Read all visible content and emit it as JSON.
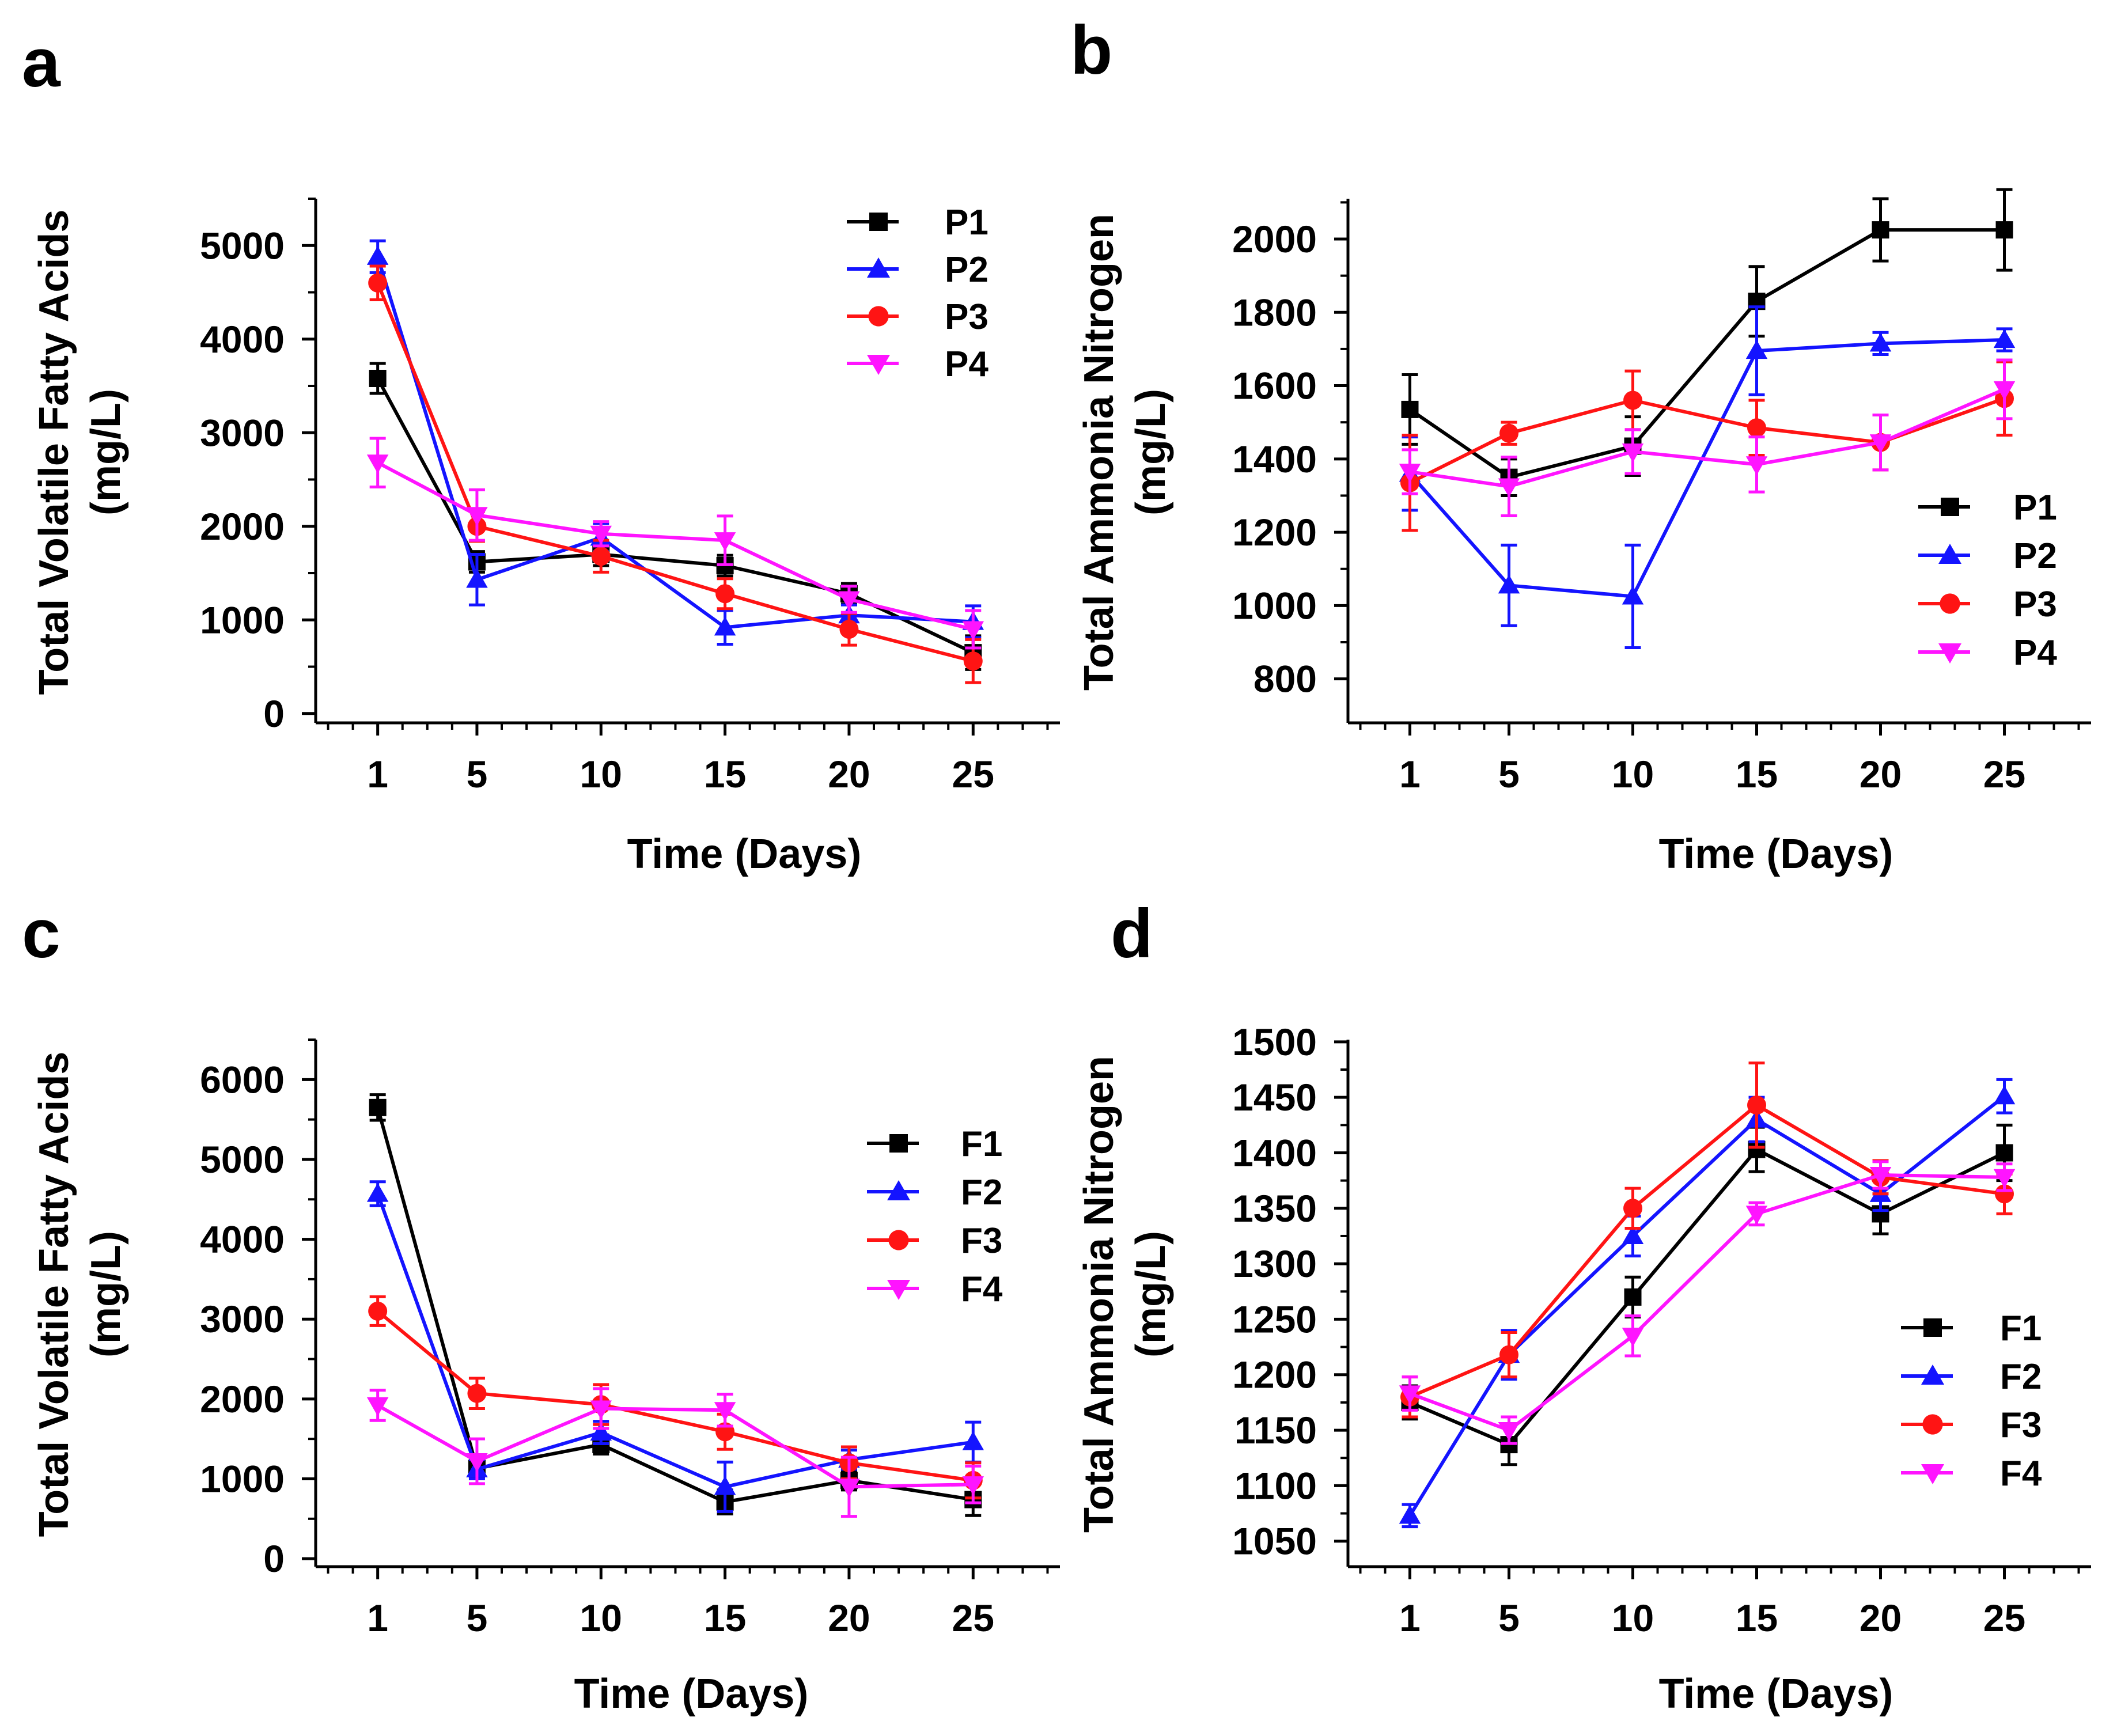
{
  "figure": {
    "panels": [
      {
        "letter": "a",
        "ylabel_line1": "Total Volatile Fatty Acids",
        "ylabel_line2": "(mg/L)",
        "xlabel": "Time (Days)"
      },
      {
        "letter": "b",
        "ylabel_line1": "Total Ammonia Nitrogen",
        "ylabel_line2": "(mg/L)",
        "xlabel": "Time (Days)"
      },
      {
        "letter": "c",
        "ylabel_line1": "Total Volatile Fatty Acids",
        "ylabel_line2": "(mg/L)",
        "xlabel": "Time (Days)"
      },
      {
        "letter": "d",
        "ylabel_line1": "Total Ammonia Nitrogen",
        "ylabel_line2": "(mg/L)",
        "xlabel": "Time (Days)"
      }
    ]
  },
  "colors": {
    "black": "#000000",
    "blue": "#1414ff",
    "red": "#ff1414",
    "magenta": "#ff14ff"
  },
  "chart_data": [
    {
      "panel": "a",
      "type": "line",
      "xlabel": "Time (Days)",
      "ylabel": "Total Volatile Fatty Acids (mg/L)",
      "x": [
        1,
        5,
        10,
        15,
        20,
        25
      ],
      "x_ticks": [
        1,
        5,
        10,
        15,
        20,
        25
      ],
      "y_ticks": [
        0,
        1000,
        2000,
        3000,
        4000,
        5000
      ],
      "ylim": [
        -100,
        5500
      ],
      "legend_position": "top-right",
      "series": [
        {
          "name": "P1",
          "marker": "square",
          "color": "#000000",
          "values": [
            3580,
            1620,
            1700,
            1580,
            1280,
            650
          ],
          "errors": [
            160,
            110,
            120,
            110,
            110,
            180
          ]
        },
        {
          "name": "P2",
          "marker": "triangle-up",
          "color": "#1414ff",
          "values": [
            4880,
            1430,
            1880,
            920,
            1050,
            980
          ],
          "errors": [
            170,
            270,
            150,
            180,
            110,
            170
          ]
        },
        {
          "name": "P3",
          "marker": "circle",
          "color": "#ff1414",
          "values": [
            4600,
            2000,
            1680,
            1280,
            900,
            560
          ],
          "errors": [
            180,
            160,
            170,
            160,
            170,
            230
          ]
        },
        {
          "name": "P4",
          "marker": "triangle-down",
          "color": "#ff14ff",
          "values": [
            2680,
            2120,
            1920,
            1850,
            1220,
            900
          ],
          "errors": [
            260,
            270,
            130,
            260,
            140,
            200
          ]
        }
      ]
    },
    {
      "panel": "b",
      "type": "line",
      "xlabel": "Time (Days)",
      "ylabel": "Total Ammonia Nitrogen (mg/L)",
      "x": [
        1,
        5,
        10,
        15,
        20,
        25
      ],
      "x_ticks": [
        1,
        5,
        10,
        15,
        20,
        25
      ],
      "y_ticks": [
        800,
        1000,
        1200,
        1400,
        1600,
        1800,
        2000
      ],
      "ylim": [
        680,
        2110
      ],
      "legend_position": "bottom-right",
      "series": [
        {
          "name": "P1",
          "marker": "square",
          "color": "#000000",
          "values": [
            1535,
            1350,
            1435,
            1830,
            2025,
            2025
          ],
          "errors": [
            95,
            50,
            80,
            95,
            85,
            110
          ]
        },
        {
          "name": "P2",
          "marker": "triangle-up",
          "color": "#1414ff",
          "values": [
            1360,
            1055,
            1025,
            1695,
            1715,
            1725
          ],
          "errors": [
            100,
            110,
            140,
            120,
            30,
            30
          ]
        },
        {
          "name": "P3",
          "marker": "circle",
          "color": "#ff1414",
          "values": [
            1335,
            1470,
            1560,
            1485,
            1445,
            1565
          ],
          "errors": [
            130,
            30,
            80,
            75,
            75,
            100
          ]
        },
        {
          "name": "P4",
          "marker": "triangle-down",
          "color": "#ff14ff",
          "values": [
            1365,
            1325,
            1420,
            1385,
            1445,
            1590
          ],
          "errors": [
            60,
            80,
            60,
            75,
            75,
            80
          ]
        }
      ]
    },
    {
      "panel": "c",
      "type": "line",
      "xlabel": "Time (Days)",
      "ylabel": "Total Volatile Fatty Acids (mg/L)",
      "x": [
        1,
        5,
        10,
        15,
        20,
        25
      ],
      "x_ticks": [
        1,
        5,
        10,
        15,
        20,
        25
      ],
      "y_ticks": [
        0,
        1000,
        2000,
        3000,
        4000,
        5000,
        6000
      ],
      "ylim": [
        -100,
        6500
      ],
      "legend_position": "right",
      "series": [
        {
          "name": "F1",
          "marker": "square",
          "color": "#000000",
          "values": [
            5650,
            1130,
            1430,
            710,
            980,
            740
          ],
          "errors": [
            160,
            100,
            120,
            150,
            120,
            200
          ]
        },
        {
          "name": "F2",
          "marker": "triangle-up",
          "color": "#1414ff",
          "values": [
            4570,
            1120,
            1580,
            900,
            1240,
            1460
          ],
          "errors": [
            150,
            120,
            140,
            310,
            120,
            250
          ]
        },
        {
          "name": "F3",
          "marker": "circle",
          "color": "#ff1414",
          "values": [
            3100,
            2070,
            1930,
            1590,
            1200,
            980
          ],
          "errors": [
            180,
            190,
            250,
            220,
            200,
            220
          ]
        },
        {
          "name": "F4",
          "marker": "triangle-down",
          "color": "#ff14ff",
          "values": [
            1920,
            1220,
            1880,
            1860,
            900,
            930
          ],
          "errors": [
            190,
            280,
            250,
            200,
            370,
            230
          ]
        }
      ]
    },
    {
      "panel": "d",
      "type": "line",
      "xlabel": "Time (Days)",
      "ylabel": "Total Ammonia Nitrogen (mg/L)",
      "x": [
        1,
        5,
        10,
        15,
        20,
        25
      ],
      "x_ticks": [
        1,
        5,
        10,
        15,
        20,
        25
      ],
      "y_ticks": [
        1050,
        1100,
        1150,
        1200,
        1250,
        1300,
        1350,
        1400,
        1450,
        1500
      ],
      "ylim": [
        1027,
        1502
      ],
      "legend_position": "bottom-right",
      "series": [
        {
          "name": "F1",
          "marker": "square",
          "color": "#000000",
          "values": [
            1175,
            1137,
            1270,
            1403,
            1345,
            1400
          ],
          "errors": [
            15,
            18,
            18,
            20,
            18,
            25
          ]
        },
        {
          "name": "F2",
          "marker": "triangle-up",
          "color": "#1414ff",
          "values": [
            1073,
            1218,
            1325,
            1430,
            1363,
            1451
          ],
          "errors": [
            10,
            22,
            18,
            20,
            15,
            15
          ]
        },
        {
          "name": "F3",
          "marker": "circle",
          "color": "#ff1414",
          "values": [
            1180,
            1218,
            1350,
            1443,
            1378,
            1363
          ],
          "errors": [
            18,
            20,
            18,
            38,
            15,
            18
          ]
        },
        {
          "name": "F4",
          "marker": "triangle-down",
          "color": "#ff14ff",
          "values": [
            1183,
            1150,
            1235,
            1345,
            1380,
            1378
          ],
          "errors": [
            15,
            12,
            18,
            10,
            12,
            12
          ]
        }
      ]
    }
  ]
}
